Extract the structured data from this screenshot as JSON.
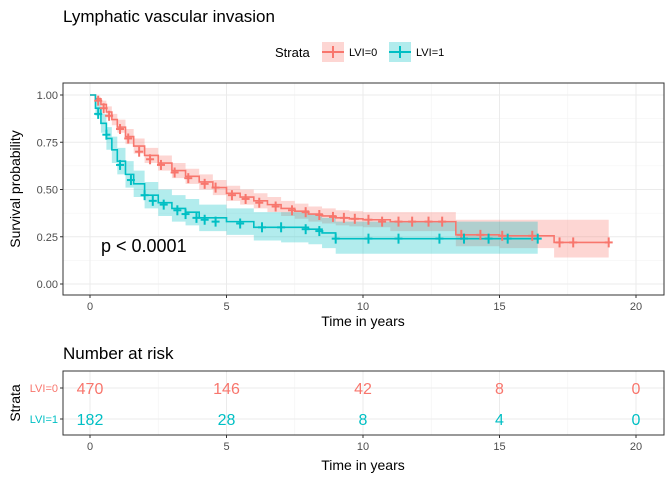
{
  "chart_data": [
    {
      "type": "line",
      "subtype": "kaplan-meier",
      "title": "Lymphatic vascular invasion",
      "xlabel": "Time in years",
      "ylabel": "Survival probability",
      "xlim": [
        0,
        20
      ],
      "ylim": [
        0,
        1
      ],
      "x_ticks": [
        "0",
        "5",
        "10",
        "15",
        "20"
      ],
      "y_ticks": [
        "0.00",
        "0.25",
        "0.50",
        "0.75",
        "1.00"
      ],
      "legend_title": "Strata",
      "legend_position": "top",
      "annotation": "p < 0.0001",
      "grid": true,
      "series": [
        {
          "name": "LVI=0",
          "color": "#F8766D",
          "fill": "#F8766D",
          "x": [
            0,
            0.2,
            0.4,
            0.6,
            0.8,
            1.0,
            1.3,
            1.6,
            2.0,
            2.5,
            3.0,
            3.5,
            4.0,
            4.5,
            5.0,
            5.5,
            6.0,
            6.5,
            7.0,
            7.5,
            8.0,
            8.5,
            9.0,
            9.5,
            10.0,
            11.0,
            12.0,
            13.0,
            13.4,
            14.0,
            15.0,
            16.0,
            17.0,
            19.0
          ],
          "y": [
            1.0,
            0.98,
            0.95,
            0.91,
            0.87,
            0.83,
            0.78,
            0.73,
            0.68,
            0.64,
            0.6,
            0.57,
            0.54,
            0.51,
            0.48,
            0.46,
            0.44,
            0.42,
            0.4,
            0.385,
            0.37,
            0.36,
            0.35,
            0.345,
            0.34,
            0.33,
            0.33,
            0.33,
            0.26,
            0.26,
            0.255,
            0.255,
            0.22,
            0.22
          ],
          "lower": [
            1.0,
            0.97,
            0.93,
            0.88,
            0.84,
            0.8,
            0.74,
            0.69,
            0.64,
            0.6,
            0.56,
            0.53,
            0.5,
            0.47,
            0.44,
            0.42,
            0.4,
            0.38,
            0.36,
            0.345,
            0.33,
            0.32,
            0.31,
            0.305,
            0.3,
            0.28,
            0.28,
            0.28,
            0.2,
            0.2,
            0.19,
            0.19,
            0.14,
            0.14
          ],
          "upper": [
            1.0,
            0.99,
            0.97,
            0.94,
            0.9,
            0.87,
            0.82,
            0.77,
            0.72,
            0.68,
            0.64,
            0.61,
            0.58,
            0.55,
            0.52,
            0.5,
            0.48,
            0.46,
            0.44,
            0.425,
            0.41,
            0.4,
            0.39,
            0.385,
            0.38,
            0.38,
            0.38,
            0.38,
            0.34,
            0.34,
            0.34,
            0.34,
            0.34,
            0.34
          ],
          "censor_x": [
            0.3,
            0.5,
            0.7,
            1.1,
            1.4,
            1.8,
            2.2,
            2.6,
            3.1,
            3.6,
            4.2,
            4.6,
            5.2,
            5.7,
            6.2,
            6.8,
            7.4,
            7.9,
            8.4,
            8.9,
            9.3,
            9.7,
            10.2,
            10.7,
            11.3,
            11.8,
            12.4,
            12.9,
            13.6,
            14.3,
            15.1,
            16.2,
            17.2,
            17.7,
            19.0
          ],
          "censor_y": [
            0.97,
            0.93,
            0.89,
            0.82,
            0.77,
            0.7,
            0.66,
            0.63,
            0.59,
            0.56,
            0.53,
            0.51,
            0.47,
            0.45,
            0.43,
            0.41,
            0.39,
            0.38,
            0.365,
            0.355,
            0.35,
            0.345,
            0.34,
            0.33,
            0.33,
            0.33,
            0.33,
            0.33,
            0.26,
            0.26,
            0.255,
            0.255,
            0.22,
            0.22,
            0.22
          ]
        },
        {
          "name": "LVI=1",
          "color": "#00BFC4",
          "fill": "#00BFC4",
          "x": [
            0,
            0.2,
            0.4,
            0.6,
            0.8,
            1.0,
            1.3,
            1.6,
            2.0,
            2.5,
            3.0,
            3.5,
            4.0,
            5.0,
            6.0,
            7.0,
            8.0,
            8.5,
            9.0,
            10.0,
            12.0,
            13.0,
            14.0,
            16.0,
            16.4
          ],
          "y": [
            1.0,
            0.93,
            0.85,
            0.77,
            0.71,
            0.65,
            0.58,
            0.53,
            0.47,
            0.43,
            0.4,
            0.38,
            0.35,
            0.33,
            0.3,
            0.3,
            0.29,
            0.27,
            0.24,
            0.24,
            0.24,
            0.24,
            0.24,
            0.24,
            0.24
          ],
          "lower": [
            1.0,
            0.89,
            0.8,
            0.71,
            0.64,
            0.58,
            0.51,
            0.46,
            0.4,
            0.36,
            0.33,
            0.31,
            0.28,
            0.26,
            0.23,
            0.22,
            0.21,
            0.19,
            0.16,
            0.16,
            0.16,
            0.16,
            0.16,
            0.16,
            0.16
          ],
          "upper": [
            1.0,
            0.97,
            0.9,
            0.83,
            0.78,
            0.72,
            0.65,
            0.6,
            0.54,
            0.5,
            0.47,
            0.45,
            0.42,
            0.4,
            0.38,
            0.38,
            0.37,
            0.35,
            0.33,
            0.33,
            0.33,
            0.33,
            0.33,
            0.33,
            0.33
          ],
          "censor_x": [
            0.3,
            0.6,
            1.1,
            1.5,
            2.0,
            2.3,
            2.7,
            3.2,
            3.5,
            3.9,
            4.2,
            4.6,
            5.5,
            6.3,
            7.0,
            7.9,
            8.4,
            9.0,
            10.2,
            11.3,
            12.8,
            13.7,
            14.6,
            15.3,
            16.4
          ],
          "censor_y": [
            0.9,
            0.79,
            0.63,
            0.55,
            0.47,
            0.44,
            0.42,
            0.39,
            0.37,
            0.35,
            0.34,
            0.33,
            0.32,
            0.3,
            0.3,
            0.29,
            0.28,
            0.24,
            0.24,
            0.24,
            0.24,
            0.24,
            0.24,
            0.24,
            0.24
          ]
        }
      ]
    },
    {
      "type": "table",
      "title": "Number at risk",
      "xlabel": "Time in years",
      "ylabel": "Strata",
      "x_ticks": [
        "0",
        "5",
        "10",
        "15",
        "20"
      ],
      "rows": [
        {
          "label": "LVI=0",
          "color": "#F8766D",
          "values": [
            "470",
            "146",
            "42",
            "8",
            "0"
          ]
        },
        {
          "label": "LVI=1",
          "color": "#00BFC4",
          "values": [
            "182",
            "28",
            "8",
            "4",
            "0"
          ]
        }
      ]
    }
  ]
}
